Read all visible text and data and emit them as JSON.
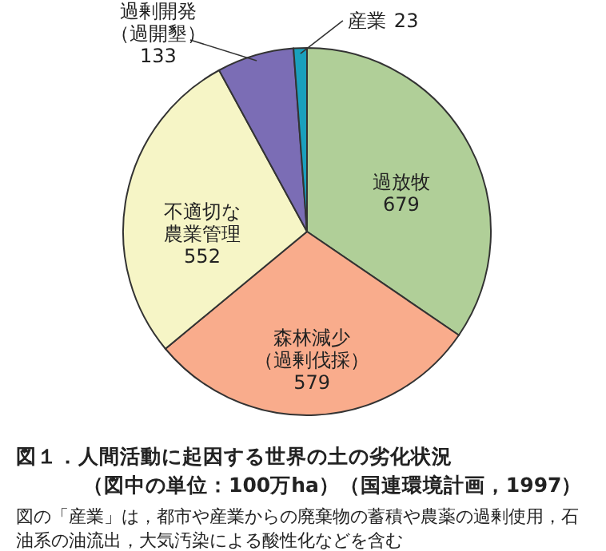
{
  "chart_data": {
    "type": "pie",
    "title": "図１．人間活動に起因する世界の土の劣化状況",
    "subtitle": "（図中の単位：100万ha）（国連環境計画，1997）",
    "categories": [
      "過放牧",
      "森林減少（過剰伐採）",
      "不適切な農業管理",
      "過剰開発（過開墾）",
      "産業"
    ],
    "values": [
      679,
      579,
      552,
      133,
      23
    ],
    "colors": [
      "#b0cf98",
      "#f9ac8c",
      "#f6f5c6",
      "#7b6db5",
      "#1aa0bd"
    ],
    "data_labels": true,
    "annotations": [
      "図の「産業」は，都市や産業からの廃棄物の蓄積や農薬の過剰使用，石油系の油流出，大気汚染による酸性化などを含む"
    ]
  }
}
